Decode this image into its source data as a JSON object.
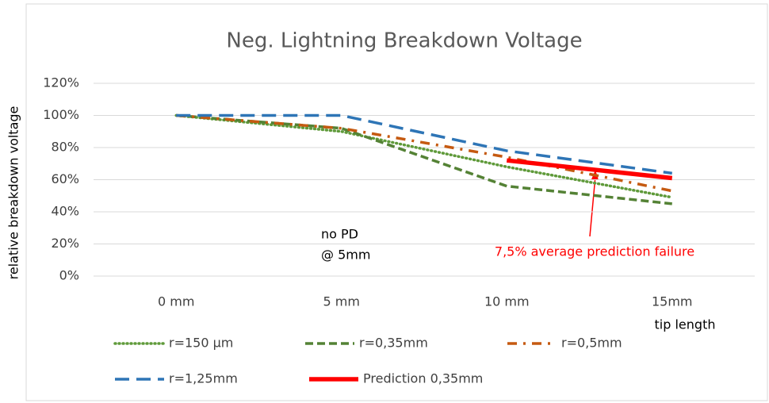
{
  "chart_data": {
    "type": "line",
    "title": "Neg. Lightning Breakdown Voltage",
    "y_label": "relative breakdown voltage",
    "x_label": "tip length",
    "categories": [
      "0 mm",
      "5 mm",
      "10 mm",
      "15mm"
    ],
    "series": [
      {
        "name": "r=150 µm",
        "color": "#5f9a3a",
        "line_style": "dotted",
        "values": [
          100,
          90,
          68,
          49
        ]
      },
      {
        "name": "r=0,35mm",
        "color": "#548235",
        "line_style": "dashed",
        "values": [
          100,
          92,
          56,
          45
        ]
      },
      {
        "name": "r=0,5mm",
        "color": "#c55a11",
        "line_style": "dash-dot",
        "values": [
          100,
          92,
          74,
          53
        ]
      },
      {
        "name": "r=1,25mm",
        "color": "#2e75b6",
        "line_style": "long-dash",
        "values": [
          100,
          100,
          78,
          64
        ]
      },
      {
        "name": "Prediction  0,35mm",
        "color": "#ff0000",
        "line_style": "solid",
        "values": [
          null,
          null,
          72,
          61
        ]
      }
    ],
    "ylim": [
      0,
      120
    ],
    "yticks": [
      {
        "value": 0,
        "label": "0%"
      },
      {
        "value": 20,
        "label": "20%"
      },
      {
        "value": 40,
        "label": "40%"
      },
      {
        "value": 60,
        "label": "60%"
      },
      {
        "value": 80,
        "label": "80%"
      },
      {
        "value": 100,
        "label": "100%"
      },
      {
        "value": 120,
        "label": "120%"
      }
    ],
    "grid": true,
    "annotations": [
      "no PD",
      "@ 5mm",
      "7,5% average prediction failure"
    ]
  }
}
